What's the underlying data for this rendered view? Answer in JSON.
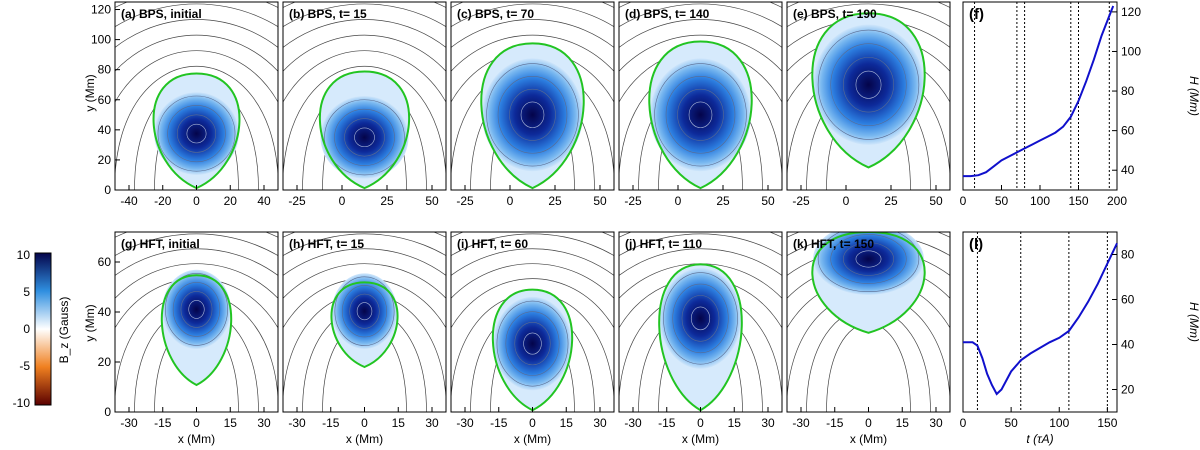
{
  "figure": {
    "top_row": {
      "panels": [
        {
          "label": "(a) BPS, initial"
        },
        {
          "label": "(b) BPS, t= 15"
        },
        {
          "label": "(c) BPS, t= 70"
        },
        {
          "label": "(d) BPS, t= 140"
        },
        {
          "label": "(e) BPS, t= 190"
        }
      ],
      "y_axis_label": "y (Mm)",
      "y_ticks": [
        "0",
        "20",
        "40",
        "60",
        "80",
        "100",
        "120"
      ],
      "x_ticks_first": [
        "-40",
        "-20",
        "0",
        "20",
        "40"
      ],
      "x_ticks_other": [
        "-25",
        "0",
        "25",
        "50"
      ]
    },
    "bottom_row": {
      "panels": [
        {
          "label": "(g) HFT, initial"
        },
        {
          "label": "(h) HFT, t= 15"
        },
        {
          "label": "(i) HFT, t= 60"
        },
        {
          "label": "(j) HFT, t= 110"
        },
        {
          "label": "(k) HFT, t= 150"
        }
      ],
      "y_axis_label": "y (Mm)",
      "x_axis_label": "x (Mm)",
      "y_ticks": [
        "0",
        "20",
        "40",
        "60"
      ],
      "x_ticks": [
        "-30",
        "-15",
        "0",
        "15",
        "30"
      ]
    },
    "colorbar": {
      "label": "B_z (Gauss)",
      "ticks": [
        "10",
        "5",
        "0",
        "-5",
        "-10"
      ],
      "colors": {
        "max": "#04044a",
        "mid_high": "#2f8fe0",
        "zero": "#ffffff",
        "mid_low": "#f08020",
        "min": "#5a0000"
      }
    },
    "colors": {
      "separatrix": "#22c422",
      "field_line": "#444444",
      "curve": "#1010cc"
    }
  },
  "chart_data": [
    {
      "type": "line",
      "title": "(f)",
      "ylabel": "H (Mm)",
      "xlabel": "",
      "xlim": [
        0,
        200
      ],
      "ylim": [
        30,
        125
      ],
      "x_ticks": [
        "0",
        "50",
        "100",
        "150",
        "200"
      ],
      "y_ticks": [
        "40",
        "60",
        "80",
        "100",
        "120"
      ],
      "series": [
        {
          "name": "BPS",
          "x": [
            0,
            10,
            20,
            30,
            40,
            50,
            60,
            70,
            80,
            90,
            100,
            110,
            120,
            130,
            140,
            150,
            160,
            170,
            180,
            190,
            195
          ],
          "y": [
            37,
            37,
            37.5,
            39,
            42,
            45,
            47,
            49,
            51,
            53,
            55,
            57,
            59,
            62,
            67,
            75,
            85,
            96,
            108,
            118,
            123
          ]
        }
      ],
      "markers": [
        15,
        70,
        80,
        140,
        150,
        190
      ]
    },
    {
      "type": "line",
      "title": "(l)",
      "ylabel": "H (Mm)",
      "xlabel": "t (τA)",
      "xlim": [
        0,
        160
      ],
      "ylim": [
        10,
        90
      ],
      "x_ticks": [
        "0",
        "50",
        "100",
        "150"
      ],
      "y_ticks": [
        "20",
        "40",
        "60",
        "80"
      ],
      "series": [
        {
          "name": "HFT",
          "x": [
            0,
            10,
            15,
            20,
            25,
            30,
            35,
            40,
            45,
            50,
            60,
            70,
            80,
            90,
            100,
            110,
            120,
            130,
            140,
            150,
            160
          ],
          "y": [
            41,
            41,
            39.5,
            34,
            27,
            22,
            18,
            20,
            24,
            28,
            33,
            36,
            38.5,
            41,
            43,
            46,
            52,
            59,
            67,
            76,
            85
          ]
        }
      ],
      "markers": [
        15,
        60,
        110,
        150
      ]
    }
  ]
}
